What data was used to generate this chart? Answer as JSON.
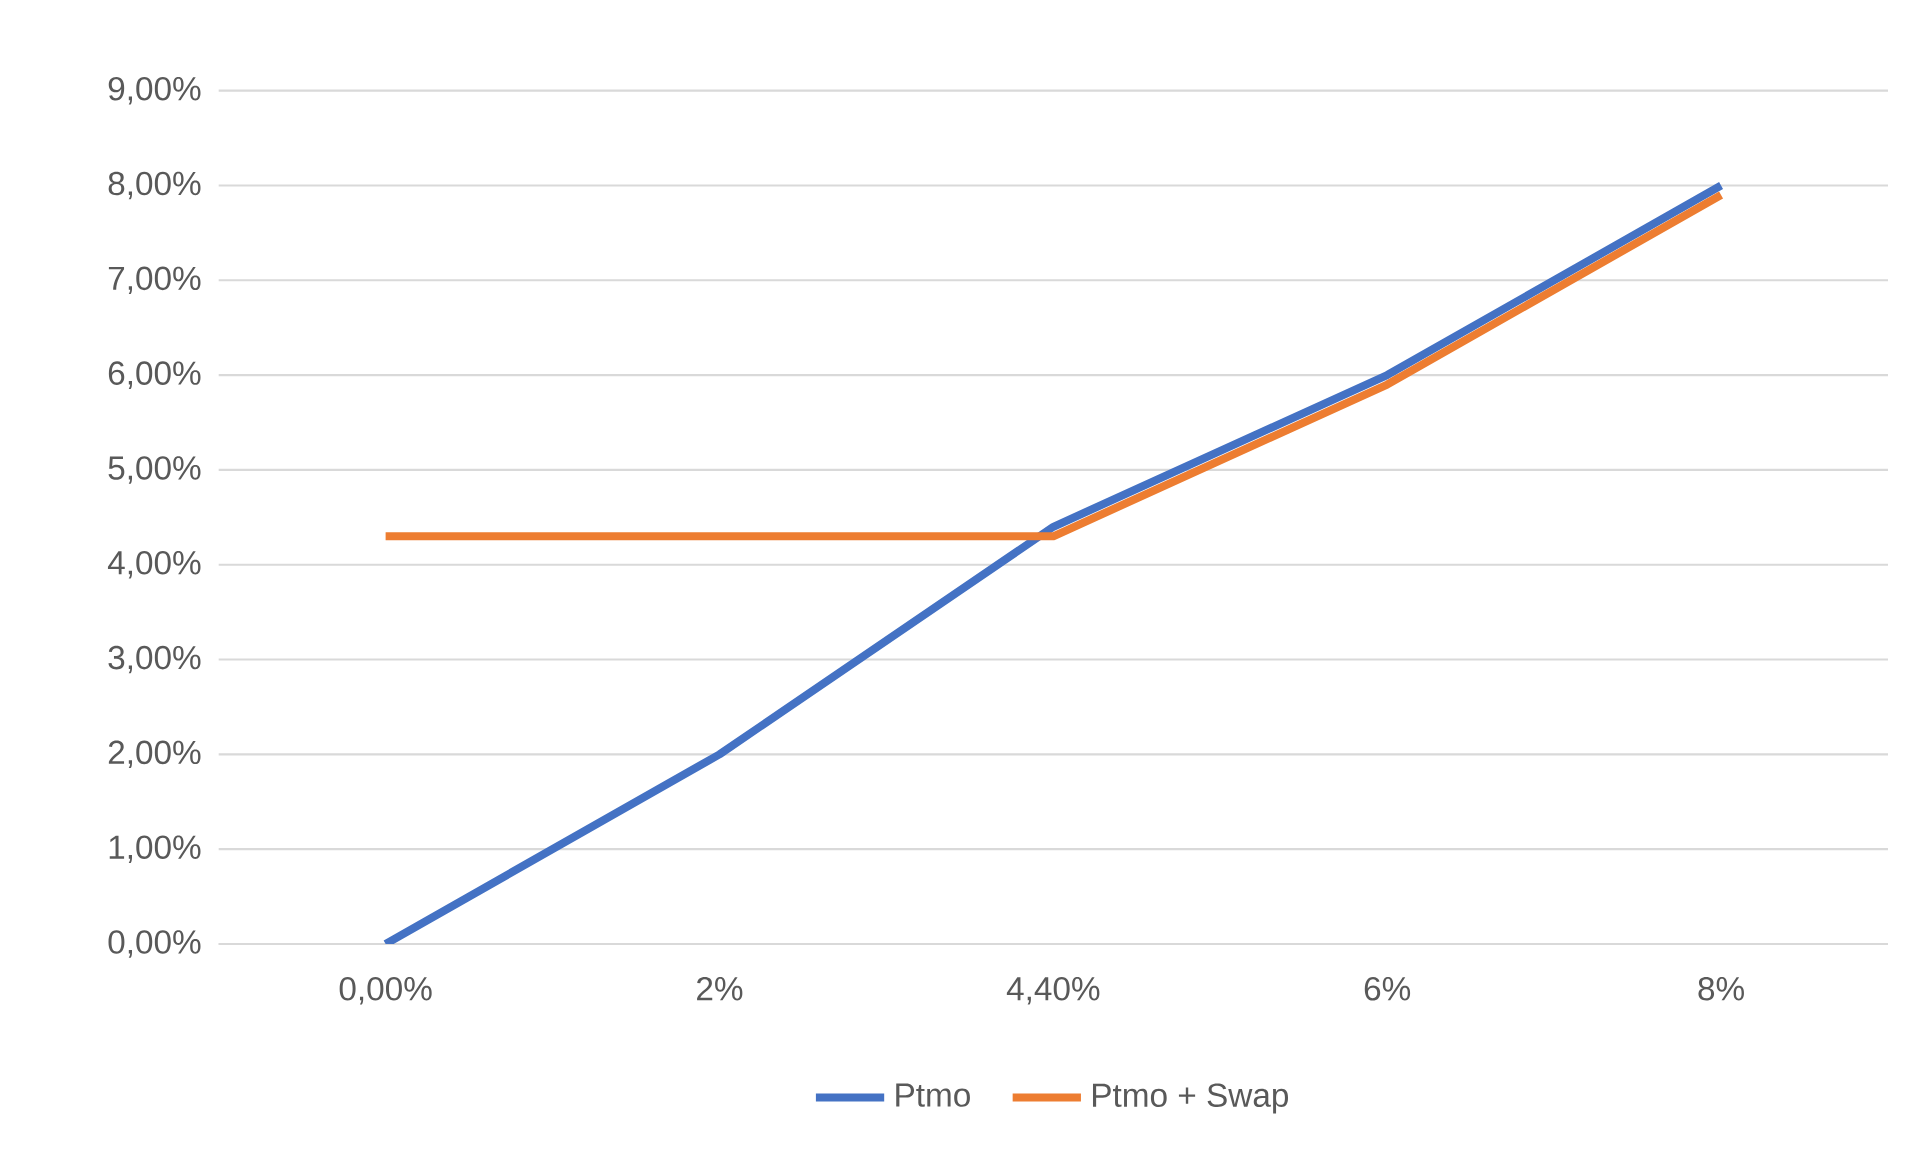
{
  "chart_data": {
    "type": "line",
    "categories": [
      "0,00%",
      "2%",
      "4,40%",
      "6%",
      "8%"
    ],
    "series": [
      {
        "name": "Ptmo",
        "color": "#4472c4",
        "values": [
          0,
          2,
          4.4,
          6,
          8
        ]
      },
      {
        "name": "Ptmo + Swap",
        "color": "#ed7d31",
        "values": [
          4.3,
          4.3,
          4.3,
          5.9,
          7.9
        ]
      }
    ],
    "ylim": [
      0,
      9
    ],
    "yticks": [
      {
        "value": 0,
        "label": "0,00%"
      },
      {
        "value": 1,
        "label": "1,00%"
      },
      {
        "value": 2,
        "label": "2,00%"
      },
      {
        "value": 3,
        "label": "3,00%"
      },
      {
        "value": 4,
        "label": "4,00%"
      },
      {
        "value": 5,
        "label": "5,00%"
      },
      {
        "value": 6,
        "label": "6,00%"
      },
      {
        "value": 7,
        "label": "7,00%"
      },
      {
        "value": 8,
        "label": "8,00%"
      },
      {
        "value": 9,
        "label": "9,00%"
      }
    ],
    "grid": "y",
    "legend": "bottom",
    "marker": "none",
    "line_style": "solid"
  }
}
